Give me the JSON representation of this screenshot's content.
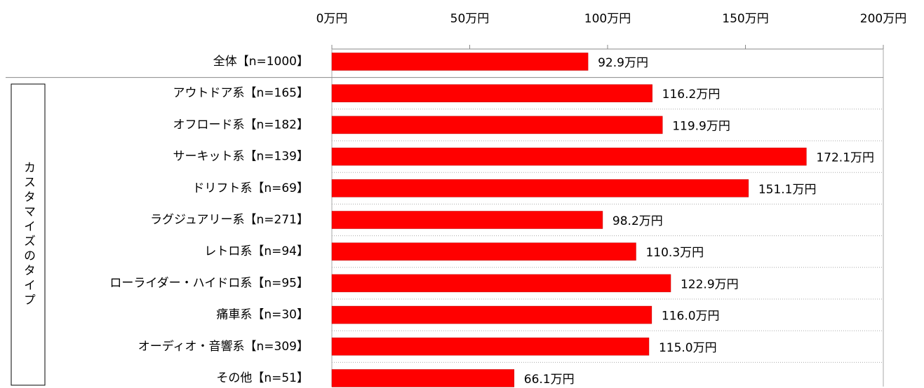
{
  "chart_data": {
    "type": "bar",
    "orientation": "horizontal",
    "group_label": "カスタマイズのタイプ",
    "categories": [
      "全体【n=1000】",
      "アウトドア系【n=165】",
      "オフロード系【n=182】",
      "サーキット系【n=139】",
      "ドリフト系【n=69】",
      "ラグジュアリー系【n=271】",
      "レトロ系【n=94】",
      "ローライダー・ハイドロ系【n=95】",
      "痛車系【n=30】",
      "オーディオ・音響系【n=309】",
      "その他【n=51】"
    ],
    "values": [
      92.9,
      116.2,
      119.9,
      172.1,
      151.1,
      98.2,
      110.3,
      122.9,
      116.0,
      115.0,
      66.1
    ],
    "value_labels": [
      "92.9万円",
      "116.2万円",
      "119.9万円",
      "172.1万円",
      "151.1万円",
      "98.2万円",
      "110.3万円",
      "122.9万円",
      "116.0万円",
      "115.0万円",
      "66.1万円"
    ],
    "color": "#ff0000",
    "xlim": [
      0,
      200
    ],
    "xticks": [
      {
        "value": 0,
        "label": "0万円"
      },
      {
        "value": 50,
        "label": "50万円"
      },
      {
        "value": 100,
        "label": "100万円"
      },
      {
        "value": 150,
        "label": "150万円"
      },
      {
        "value": 200,
        "label": "200万円"
      }
    ],
    "grid": false
  }
}
